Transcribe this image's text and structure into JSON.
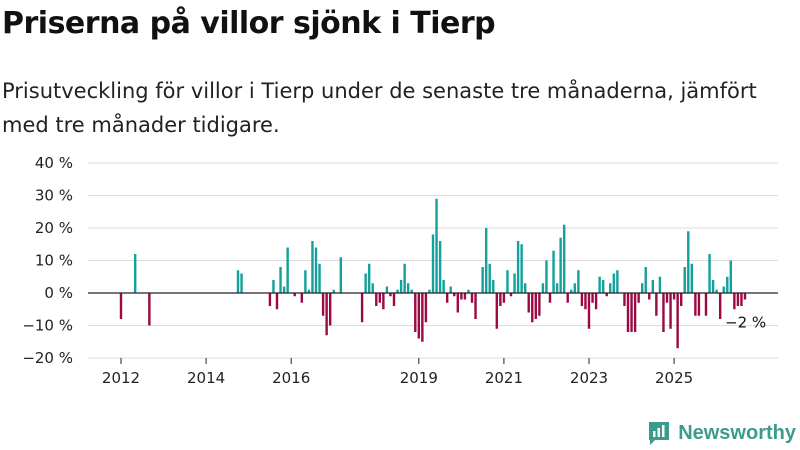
{
  "header": {
    "title": "Priserna på villor sjönk i Tierp",
    "subtitle": "Prisutveckling för villor i Tierp under de senaste tre månaderna, jämfört med tre månader tidigare."
  },
  "brand": {
    "name": "Newsworthy"
  },
  "colors": {
    "positive": "#14a09b",
    "negative": "#9b0a44",
    "grid": "#dddddd",
    "axis": "#222222"
  },
  "chart_data": {
    "type": "bar",
    "title": "Priserna på villor sjönk i Tierp",
    "subtitle": "Prisutveckling för villor i Tierp under de senaste tre månaderna, jämfört med tre månader tidigare.",
    "unit": "%",
    "ylim": [
      -20,
      40
    ],
    "yticks": [
      -20,
      -10,
      0,
      10,
      20,
      30,
      40
    ],
    "ytick_labels": [
      "−20 %",
      "−10 %",
      "0 %",
      "10 %",
      "20 %",
      "30 %",
      "40 %"
    ],
    "xticks": [
      "2012",
      "2014",
      "2016",
      "2019",
      "2021",
      "2023",
      "2025"
    ],
    "grid": true,
    "legend": "none",
    "annotation": {
      "label": "−2 %",
      "value": -2
    },
    "values": [
      -8,
      null,
      null,
      null,
      12,
      null,
      null,
      null,
      -10,
      null,
      null,
      null,
      null,
      null,
      null,
      null,
      null,
      null,
      null,
      null,
      null,
      null,
      null,
      null,
      null,
      null,
      null,
      null,
      null,
      null,
      null,
      null,
      null,
      7,
      6,
      null,
      null,
      null,
      null,
      null,
      null,
      null,
      -4,
      4,
      -5,
      8,
      2,
      14,
      null,
      -1,
      null,
      -3,
      7,
      1,
      16,
      14,
      9,
      -7,
      -13,
      -10,
      1,
      null,
      11,
      null,
      null,
      null,
      null,
      null,
      -9,
      6,
      9,
      3,
      -4,
      -3,
      -5,
      2,
      -1,
      -4,
      1,
      4,
      9,
      3,
      1,
      -12,
      -14,
      -15,
      -9,
      1,
      18,
      29,
      16,
      4,
      -3,
      2,
      -1,
      -6,
      -2,
      -2,
      1,
      -3,
      -8,
      null,
      8,
      20,
      9,
      4,
      -11,
      -4,
      -3,
      7,
      -1,
      6,
      16,
      15,
      3,
      -6,
      -9,
      -8,
      -7,
      3,
      10,
      -3,
      13,
      3,
      17,
      21,
      -3,
      1,
      3,
      7,
      -4,
      -5,
      -11,
      -3,
      -5,
      5,
      4,
      -1,
      3,
      6,
      7,
      null,
      -4,
      -12,
      -12,
      -12,
      -3,
      3,
      8,
      -2,
      4,
      -7,
      5,
      -12,
      -3,
      -11,
      -2,
      -17,
      -4,
      8,
      19,
      9,
      -7,
      -7,
      0,
      -7,
      12,
      4,
      1,
      -8,
      2,
      5,
      10,
      -5,
      -4,
      -4,
      -2
    ]
  }
}
